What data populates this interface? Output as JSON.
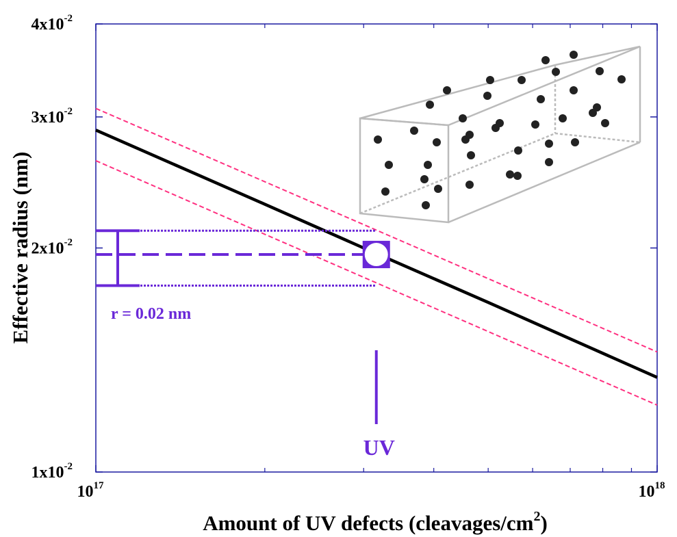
{
  "chart_data": {
    "type": "line",
    "xlabel": [
      "Amount of UV defects (cleavages/cm",
      "2",
      ")"
    ],
    "ylabel": "Effective radius (nm)",
    "log_x": true,
    "log_y": true,
    "xlim": [
      1e+17,
      1e+18
    ],
    "ylim": [
      0.01,
      0.04
    ],
    "xticks": [
      {
        "value": 1e+17,
        "label": "10",
        "exp": "17"
      },
      {
        "value": 1e+18,
        "label": "10",
        "exp": "18"
      }
    ],
    "xminor": [
      2e+17,
      3e+17,
      4e+17,
      5e+17,
      6e+17,
      7e+17,
      8e+17,
      9e+17
    ],
    "yticks": [
      {
        "value": 0.01,
        "label": "1x10",
        "exp": "-2"
      },
      {
        "value": 0.02,
        "label": "2x10",
        "exp": "-2"
      },
      {
        "value": 0.03,
        "label": "3x10",
        "exp": "-2"
      },
      {
        "value": 0.04,
        "label": "4x10",
        "exp": "-2"
      }
    ],
    "series": [
      {
        "color": "#000000",
        "style": "solid",
        "x": [
          1e+17,
          2e+17,
          3e+17,
          5e+17,
          7e+17,
          1e+18
        ],
        "values": [
          0.0288,
          0.0229,
          0.02,
          0.0169,
          0.0151,
          0.0134
        ]
      },
      {
        "color": "#ff3080",
        "style": "dashed",
        "x": [
          1e+17,
          1e+18
        ],
        "values": [
          0.0308,
          0.0145
        ]
      },
      {
        "color": "#ff3080",
        "style": "dashed",
        "x": [
          1e+17,
          1e+18
        ],
        "values": [
          0.0262,
          0.0123
        ]
      }
    ],
    "annotation": {
      "color": "#6a28d8",
      "x": 3.16e+17,
      "y": 0.0196,
      "band": [
        0.0178,
        0.0211
      ],
      "text": "r = 0.02 nm",
      "label": "UV"
    }
  }
}
